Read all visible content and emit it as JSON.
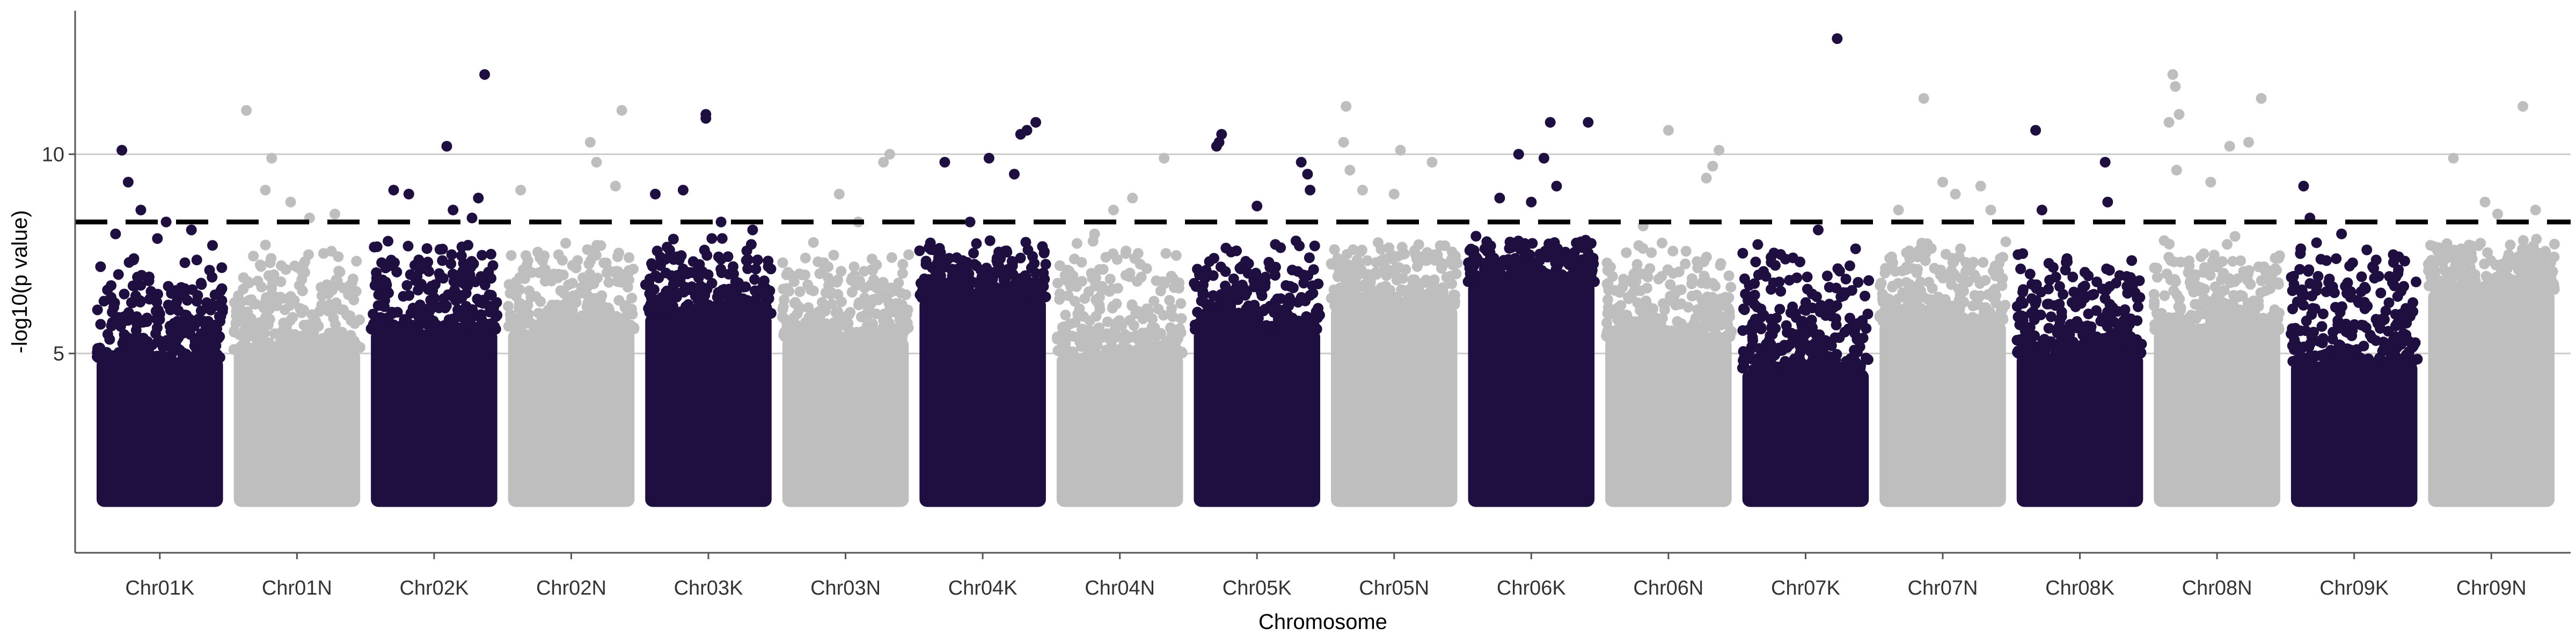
{
  "chart_data": {
    "type": "scatter",
    "title": "",
    "xlabel": "Chromosome",
    "ylabel": "-log10(p value)",
    "ylim": [
      0,
      13.6
    ],
    "yticks": [
      5,
      10
    ],
    "grid": "horizontal major gridlines at y ticks",
    "legend": "none",
    "threshold": 8.3,
    "colors": {
      "dark": "#1e0f40",
      "light": "#bebebe",
      "threshold_line": "#000000",
      "grid": "#cccccc",
      "axis": "#555555"
    },
    "categories": [
      "Chr01K",
      "Chr01N",
      "Chr02K",
      "Chr02N",
      "Chr03K",
      "Chr03N",
      "Chr04K",
      "Chr04N",
      "Chr05K",
      "Chr05N",
      "Chr06K",
      "Chr06N",
      "Chr07K",
      "Chr07N",
      "Chr08K",
      "Chr08N",
      "Chr09K",
      "Chr09N"
    ],
    "series": [
      {
        "chromosome": "Chr01K",
        "color": "dark",
        "base_top": 4.9,
        "peak_points": [
          [
            0.2,
            10.1
          ],
          [
            0.25,
            9.3
          ],
          [
            0.35,
            8.6
          ],
          [
            0.55,
            8.3
          ],
          [
            0.15,
            8.0
          ],
          [
            0.75,
            8.1
          ]
        ]
      },
      {
        "chromosome": "Chr01N",
        "color": "light",
        "base_top": 5.1,
        "peak_points": [
          [
            0.1,
            11.1
          ],
          [
            0.25,
            9.1
          ],
          [
            0.3,
            9.9
          ],
          [
            0.45,
            8.8
          ],
          [
            0.6,
            8.4
          ],
          [
            0.8,
            8.5
          ]
        ]
      },
      {
        "chromosome": "Chr02K",
        "color": "dark",
        "base_top": 5.6,
        "peak_points": [
          [
            0.18,
            9.1
          ],
          [
            0.3,
            9.0
          ],
          [
            0.6,
            10.2
          ],
          [
            0.9,
            12.0
          ],
          [
            0.85,
            8.9
          ],
          [
            0.65,
            8.6
          ],
          [
            0.8,
            8.4
          ]
        ]
      },
      {
        "chromosome": "Chr02N",
        "color": "light",
        "base_top": 5.6,
        "peak_points": [
          [
            0.1,
            9.1
          ],
          [
            0.65,
            10.3
          ],
          [
            0.9,
            11.1
          ],
          [
            0.7,
            9.8
          ],
          [
            0.85,
            9.2
          ]
        ]
      },
      {
        "chromosome": "Chr03K",
        "color": "dark",
        "base_top": 6.0,
        "peak_points": [
          [
            0.08,
            9.0
          ],
          [
            0.3,
            9.1
          ],
          [
            0.48,
            11.0
          ],
          [
            0.48,
            10.9
          ],
          [
            0.6,
            8.3
          ],
          [
            0.85,
            8.1
          ]
        ]
      },
      {
        "chromosome": "Chr03N",
        "color": "light",
        "base_top": 5.4,
        "peak_points": [
          [
            0.45,
            9.0
          ],
          [
            0.8,
            9.8
          ],
          [
            0.85,
            10.0
          ],
          [
            0.6,
            8.3
          ]
        ]
      },
      {
        "chromosome": "Chr04K",
        "color": "dark",
        "base_top": 6.4,
        "peak_points": [
          [
            0.2,
            9.8
          ],
          [
            0.55,
            9.9
          ],
          [
            0.8,
            10.5
          ],
          [
            0.85,
            10.6
          ],
          [
            0.92,
            10.8
          ],
          [
            0.75,
            9.5
          ],
          [
            0.4,
            8.3
          ]
        ]
      },
      {
        "chromosome": "Chr04N",
        "color": "light",
        "base_top": 5.0,
        "peak_points": [
          [
            0.45,
            8.6
          ],
          [
            0.6,
            8.9
          ],
          [
            0.85,
            9.9
          ],
          [
            0.3,
            8.0
          ]
        ]
      },
      {
        "chromosome": "Chr05K",
        "color": "dark",
        "base_top": 5.6,
        "peak_points": [
          [
            0.2,
            10.3
          ],
          [
            0.22,
            10.5
          ],
          [
            0.18,
            10.2
          ],
          [
            0.5,
            8.7
          ],
          [
            0.85,
            9.8
          ],
          [
            0.9,
            9.5
          ],
          [
            0.92,
            9.1
          ]
        ]
      },
      {
        "chromosome": "Chr05N",
        "color": "light",
        "base_top": 6.2,
        "peak_points": [
          [
            0.1,
            10.3
          ],
          [
            0.12,
            11.2
          ],
          [
            0.15,
            9.6
          ],
          [
            0.5,
            9.0
          ],
          [
            0.55,
            10.1
          ],
          [
            0.8,
            9.8
          ],
          [
            0.25,
            9.1
          ]
        ]
      },
      {
        "chromosome": "Chr06K",
        "color": "dark",
        "base_top": 6.8,
        "peak_points": [
          [
            0.25,
            8.9
          ],
          [
            0.4,
            10.0
          ],
          [
            0.6,
            9.9
          ],
          [
            0.65,
            10.8
          ],
          [
            0.95,
            10.8
          ],
          [
            0.7,
            9.2
          ],
          [
            0.5,
            8.8
          ]
        ]
      },
      {
        "chromosome": "Chr06N",
        "color": "light",
        "base_top": 5.4,
        "peak_points": [
          [
            0.5,
            10.6
          ],
          [
            0.8,
            9.4
          ],
          [
            0.9,
            10.1
          ],
          [
            0.85,
            9.7
          ],
          [
            0.3,
            8.2
          ]
        ]
      },
      {
        "chromosome": "Chr07K",
        "color": "dark",
        "base_top": 4.6,
        "peak_points": [
          [
            0.75,
            12.9
          ],
          [
            0.6,
            8.1
          ],
          [
            0.85,
            7.2
          ],
          [
            0.4,
            7.4
          ]
        ]
      },
      {
        "chromosome": "Chr07N",
        "color": "light",
        "base_top": 5.8,
        "peak_points": [
          [
            0.15,
            8.6
          ],
          [
            0.35,
            11.4
          ],
          [
            0.5,
            9.3
          ],
          [
            0.6,
            9.0
          ],
          [
            0.8,
            9.2
          ],
          [
            0.88,
            8.6
          ]
        ]
      },
      {
        "chromosome": "Chr08K",
        "color": "dark",
        "base_top": 5.0,
        "peak_points": [
          [
            0.15,
            10.6
          ],
          [
            0.2,
            8.6
          ],
          [
            0.7,
            9.8
          ],
          [
            0.72,
            8.8
          ],
          [
            0.4,
            7.3
          ]
        ]
      },
      {
        "chromosome": "Chr08N",
        "color": "light",
        "base_top": 5.6,
        "peak_points": [
          [
            0.12,
            10.8
          ],
          [
            0.15,
            12.0
          ],
          [
            0.17,
            11.7
          ],
          [
            0.2,
            11.0
          ],
          [
            0.18,
            9.6
          ],
          [
            0.6,
            10.2
          ],
          [
            0.75,
            10.3
          ],
          [
            0.85,
            11.4
          ],
          [
            0.45,
            9.3
          ]
        ]
      },
      {
        "chromosome": "Chr09K",
        "color": "dark",
        "base_top": 4.8,
        "peak_points": [
          [
            0.1,
            9.2
          ],
          [
            0.15,
            8.4
          ],
          [
            0.4,
            8.0
          ],
          [
            0.6,
            7.6
          ],
          [
            0.85,
            7.1
          ]
        ]
      },
      {
        "chromosome": "Chr09N",
        "color": "light",
        "base_top": 6.6,
        "peak_points": [
          [
            0.2,
            9.9
          ],
          [
            0.45,
            8.8
          ],
          [
            0.75,
            11.2
          ],
          [
            0.85,
            8.6
          ],
          [
            0.55,
            8.5
          ]
        ]
      }
    ]
  }
}
